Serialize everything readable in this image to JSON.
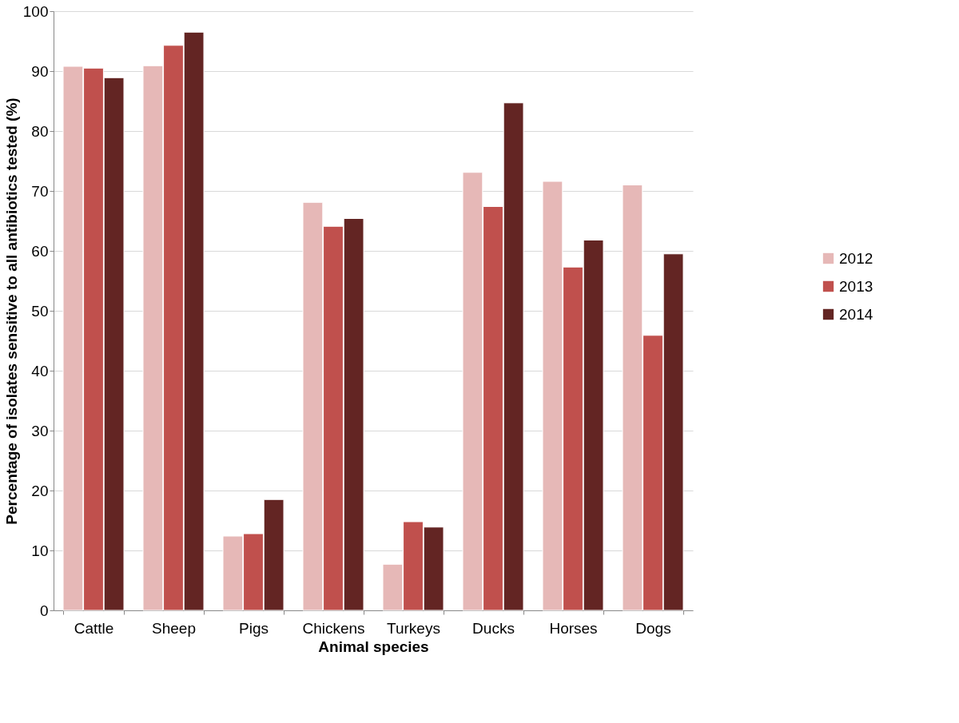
{
  "chart_data": {
    "type": "bar",
    "xlabel": "Animal species",
    "ylabel": "Percentage of isolates sensitive to all antibiotics tested (%)",
    "categories": [
      "Cattle",
      "Sheep",
      "Pigs",
      "Chickens",
      "Turkeys",
      "Ducks",
      "Horses",
      "Dogs"
    ],
    "series": [
      {
        "name": "2012",
        "color": "#e6b8b7",
        "values": [
          90.8,
          90.9,
          12.4,
          68.1,
          7.7,
          73.1,
          71.6,
          71.0
        ]
      },
      {
        "name": "2013",
        "color": "#c0504d",
        "values": [
          90.5,
          94.3,
          12.8,
          64.1,
          14.8,
          67.4,
          57.3,
          45.9
        ]
      },
      {
        "name": "2014",
        "color": "#632523",
        "values": [
          88.9,
          96.5,
          18.5,
          65.4,
          13.9,
          84.7,
          61.8,
          59.5
        ]
      }
    ],
    "ylim": [
      0,
      100
    ],
    "yticks": [
      0,
      10,
      20,
      30,
      40,
      50,
      60,
      70,
      80,
      90,
      100
    ],
    "grid": "y",
    "legend": "right"
  }
}
